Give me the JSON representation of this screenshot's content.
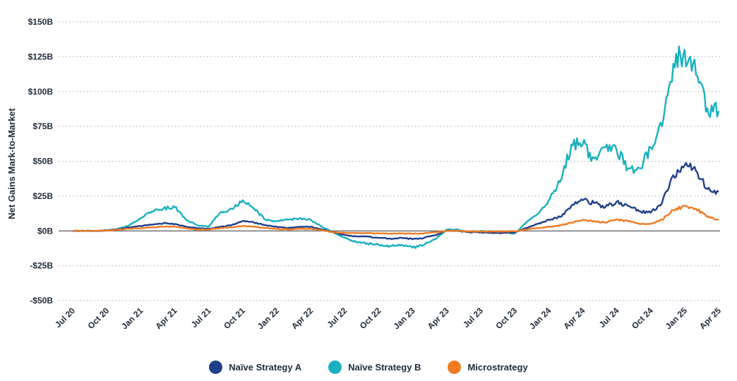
{
  "chart_data": {
    "type": "line",
    "ylabel": "Net Gains Mark-to-Market",
    "xlabel": "",
    "ylim": [
      -50,
      150
    ],
    "y_unit": "billion USD",
    "yticks": [
      {
        "value": 150,
        "label": "$150B"
      },
      {
        "value": 125,
        "label": "$125B"
      },
      {
        "value": 100,
        "label": "$100B"
      },
      {
        "value": 75,
        "label": "$75B"
      },
      {
        "value": 50,
        "label": "$50B"
      },
      {
        "value": 25,
        "label": "$25B"
      },
      {
        "value": 0,
        "label": "$0B"
      },
      {
        "value": -25,
        "label": "-$25B"
      },
      {
        "value": -50,
        "label": "-$50B"
      }
    ],
    "xticks": [
      "Jul 20",
      "Oct 20",
      "Jan 21",
      "Apr 21",
      "Jul 21",
      "Oct 21",
      "Jan 22",
      "Apr 22",
      "Jul 22",
      "Oct 22",
      "Jan 23",
      "Apr 23",
      "Jul 23",
      "Oct 23",
      "Jan 24",
      "Apr 24",
      "Jul 24",
      "Oct 24",
      "Jan 25",
      "Apr 25"
    ],
    "grid": "horizontal-dotted",
    "legend_position": "bottom-center",
    "x": [
      "Jul 20",
      "Aug 20",
      "Sep 20",
      "Oct 20",
      "Nov 20",
      "Dec 20",
      "Jan 21",
      "Feb 21",
      "Mar 21",
      "Apr 21",
      "May 21",
      "Jun 21",
      "Jul 21",
      "Aug 21",
      "Sep 21",
      "Oct 21",
      "Nov 21",
      "Dec 21",
      "Jan 22",
      "Feb 22",
      "Mar 22",
      "Apr 22",
      "May 22",
      "Jun 22",
      "Jul 22",
      "Aug 22",
      "Sep 22",
      "Oct 22",
      "Nov 22",
      "Dec 22",
      "Jan 23",
      "Feb 23",
      "Mar 23",
      "Apr 23",
      "May 23",
      "Jun 23",
      "Jul 23",
      "Aug 23",
      "Sep 23",
      "Oct 23",
      "Nov 23",
      "Dec 23",
      "Jan 24",
      "Feb 24",
      "Mar 24",
      "Apr 24",
      "May 24",
      "Jun 24",
      "Jul 24",
      "Aug 24",
      "Sep 24",
      "Oct 24",
      "Nov 24",
      "Dec 24",
      "Jan 25",
      "Feb 25",
      "Mar 25",
      "Apr 25"
    ],
    "series": [
      {
        "name": "Naïve Strategy A",
        "color": "#1e3f8a",
        "values": [
          0,
          0,
          0,
          0.3,
          1,
          2.5,
          3.5,
          4.5,
          5.5,
          5,
          3,
          2,
          1.5,
          3,
          4,
          7,
          6,
          4,
          3,
          2,
          3,
          3,
          1,
          -1,
          -3,
          -4,
          -4,
          -5,
          -5.5,
          -5,
          -6,
          -5,
          -3,
          0,
          0,
          -1,
          -1,
          -1.5,
          -1.5,
          -1,
          2,
          5,
          8,
          10,
          18,
          22,
          20,
          17,
          21,
          18,
          14,
          13,
          20,
          40,
          47,
          43,
          30,
          28
        ]
      },
      {
        "name": "Naïve Strategy B",
        "color": "#19b0bf",
        "values": [
          0,
          0,
          0,
          0.5,
          1.5,
          4,
          9,
          14,
          16,
          17,
          8,
          4,
          3,
          13,
          16,
          22,
          16,
          8,
          7,
          8,
          9,
          8,
          3,
          -1,
          -5,
          -8,
          -9,
          -10,
          -11,
          -10,
          -12,
          -10,
          -6,
          1,
          1,
          -1,
          0,
          -1,
          -1,
          -2,
          6,
          12,
          22,
          35,
          62,
          62,
          52,
          60,
          58,
          45,
          45,
          60,
          75,
          120,
          130,
          112,
          88,
          86
        ]
      },
      {
        "name": "Microstrategy",
        "color": "#f07a21",
        "values": [
          0,
          0,
          0,
          0.2,
          0.8,
          1.5,
          2,
          2.5,
          3,
          3,
          2,
          1,
          1,
          2,
          2.5,
          3.5,
          3,
          2,
          1.5,
          1,
          1.5,
          1.5,
          0.5,
          -1,
          -1.5,
          -1.5,
          -1.5,
          -1.8,
          -2,
          -1.8,
          -2,
          -1.8,
          -1,
          0,
          0,
          -0.5,
          -0.5,
          -0.5,
          -0.5,
          -0.3,
          1,
          2,
          3,
          4,
          6,
          8,
          7,
          6,
          8,
          7,
          5,
          5,
          8,
          15,
          18,
          16,
          10,
          8
        ]
      }
    ]
  }
}
